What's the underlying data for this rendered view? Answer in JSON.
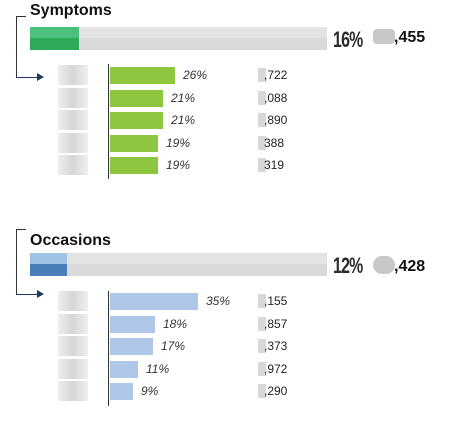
{
  "chart_data": [
    {
      "type": "bar",
      "title": "Symptoms",
      "total": {
        "percent_label": "16%",
        "percent_value": 16,
        "count_label": ",455"
      },
      "colors": {
        "bar": "#8dc63f",
        "total_fill": "#2eaa59",
        "total_fill_top": "#4bc07a",
        "track": "#d9d9d9"
      },
      "categories": [
        "",
        "",
        "",
        "",
        ""
      ],
      "values": [
        26,
        21,
        21,
        19,
        19
      ],
      "value_labels": [
        "26%",
        "21%",
        "21%",
        "19%",
        "19%"
      ],
      "counts": [
        ",722",
        ",088",
        ",890",
        "388",
        "319"
      ],
      "xlim": [
        0,
        35
      ]
    },
    {
      "type": "bar",
      "title": "Occasions",
      "total": {
        "percent_label": "12%",
        "percent_value": 12,
        "count_label": ",428"
      },
      "colors": {
        "bar": "#aec6e8",
        "total_fill": "#4a7ebb",
        "total_fill_top": "#9dc3e6",
        "track": "#d9d9d9"
      },
      "categories": [
        "",
        "",
        "",
        "",
        ""
      ],
      "values": [
        35,
        18,
        17,
        11,
        9
      ],
      "value_labels": [
        "35%",
        "18%",
        "17%",
        "11%",
        "9%"
      ],
      "counts": [
        ",155",
        ",857",
        ",373",
        ",972",
        ",290"
      ],
      "xlim": [
        0,
        35
      ]
    }
  ]
}
